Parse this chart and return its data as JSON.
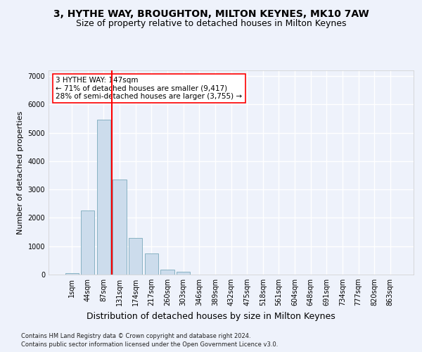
{
  "title1": "3, HYTHE WAY, BROUGHTON, MILTON KEYNES, MK10 7AW",
  "title2": "Size of property relative to detached houses in Milton Keynes",
  "xlabel": "Distribution of detached houses by size in Milton Keynes",
  "ylabel": "Number of detached properties",
  "footnote1": "Contains HM Land Registry data © Crown copyright and database right 2024.",
  "footnote2": "Contains public sector information licensed under the Open Government Licence v3.0.",
  "bar_labels": [
    "1sqm",
    "44sqm",
    "87sqm",
    "131sqm",
    "174sqm",
    "217sqm",
    "260sqm",
    "303sqm",
    "346sqm",
    "389sqm",
    "432sqm",
    "475sqm",
    "518sqm",
    "561sqm",
    "604sqm",
    "648sqm",
    "691sqm",
    "734sqm",
    "777sqm",
    "820sqm",
    "863sqm"
  ],
  "bar_values": [
    50,
    2250,
    5450,
    3350,
    1300,
    750,
    175,
    100,
    0,
    0,
    0,
    0,
    0,
    0,
    0,
    0,
    0,
    0,
    0,
    0,
    0
  ],
  "bar_color": "#ccdcec",
  "bar_edge_color": "#7aaabb",
  "vline_x_idx": 3,
  "vline_color": "red",
  "annotation_text": "3 HYTHE WAY: 147sqm\n← 71% of detached houses are smaller (9,417)\n28% of semi-detached houses are larger (3,755) →",
  "annotation_box_color": "white",
  "annotation_box_edge": "red",
  "ylim": [
    0,
    7200
  ],
  "yticks": [
    0,
    1000,
    2000,
    3000,
    4000,
    5000,
    6000,
    7000
  ],
  "background_color": "#eef2fb",
  "plot_bg_color": "#eef2fb",
  "grid_color": "white",
  "title1_fontsize": 10,
  "title2_fontsize": 9,
  "xlabel_fontsize": 9,
  "ylabel_fontsize": 8,
  "tick_fontsize": 7,
  "annot_fontsize": 7.5
}
